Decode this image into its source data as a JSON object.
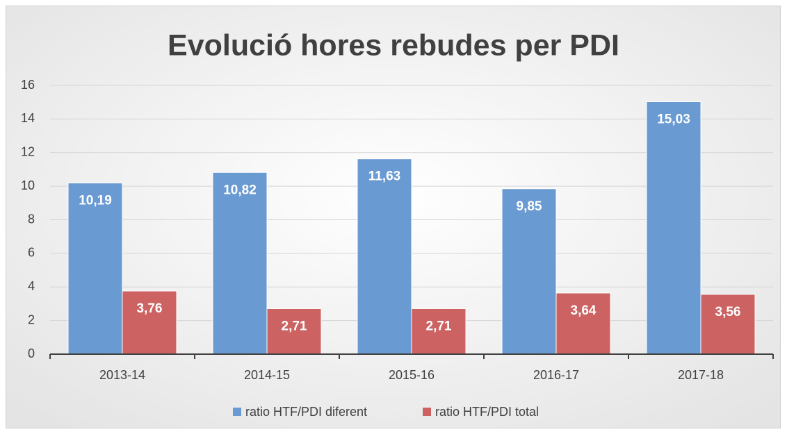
{
  "chart_data": {
    "type": "bar",
    "title": "Evolució hores rebudes per PDI",
    "categories": [
      "2013-14",
      "2014-15",
      "2015-16",
      "2016-17",
      "2017-18"
    ],
    "series": [
      {
        "name": "ratio HTF/PDI diferent",
        "color": "#6a9ad2",
        "values": [
          10.19,
          10.82,
          11.63,
          9.85,
          15.03
        ],
        "value_labels": [
          "10,19",
          "10,82",
          "11,63",
          "9,85",
          "15,03"
        ]
      },
      {
        "name": "ratio HTF/PDI total",
        "color": "#cc6262",
        "values": [
          3.76,
          2.71,
          2.71,
          3.64,
          3.56
        ],
        "value_labels": [
          "3,76",
          "2,71",
          "2,71",
          "3,64",
          "3,56"
        ]
      }
    ],
    "ylim": [
      0,
      16
    ],
    "yticks": [
      0,
      2,
      4,
      6,
      8,
      10,
      12,
      14,
      16
    ],
    "grid": true,
    "legend": "bottom"
  }
}
